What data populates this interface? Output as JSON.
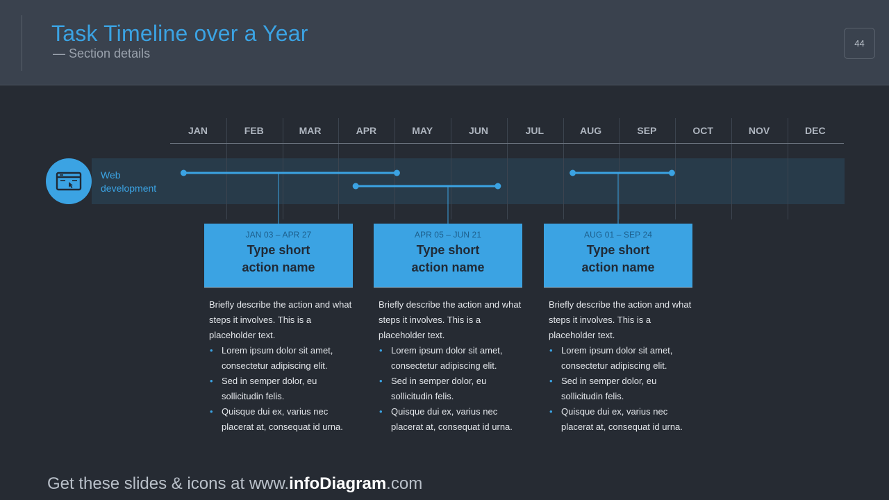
{
  "header": {
    "title": "Task Timeline over a Year",
    "subtitle": "— Section details",
    "page_number": "44"
  },
  "timeline": {
    "months": [
      "JAN",
      "FEB",
      "MAR",
      "APR",
      "MAY",
      "JUN",
      "JUL",
      "AUG",
      "SEP",
      "OCT",
      "NOV",
      "DEC"
    ],
    "row_label": "Web development",
    "row_icon": "browser-window-icon",
    "accent_color": "#3ba3e3",
    "tasks": [
      {
        "dates": "JAN 03 – APR 27",
        "name": "Type short\naction name",
        "description": "Briefly describe the action and what steps it involves. This is a placeholder text.",
        "bullets": [
          "Lorem ipsum dolor sit amet, consectetur adipiscing elit.",
          "Sed in semper dolor, eu sollicitudin felis.",
          "Quisque dui ex, varius nec placerat at, consequat id urna."
        ]
      },
      {
        "dates": "APR 05 – JUN 21",
        "name": "Type short\naction name",
        "description": "Briefly describe the action and what steps it involves. This is a placeholder text.",
        "bullets": [
          "Lorem ipsum dolor sit amet, consectetur adipiscing elit.",
          "Sed in semper dolor, eu sollicitudin felis.",
          "Quisque dui ex, varius nec placerat at, consequat id urna."
        ]
      },
      {
        "dates": "AUG 01 – SEP 24",
        "name": "Type short\naction name",
        "description": "Briefly describe the action and what steps it involves. This is a placeholder text.",
        "bullets": [
          "Lorem ipsum dolor sit amet, consectetur adipiscing elit.",
          "Sed in semper dolor, eu sollicitudin felis.",
          "Quisque dui ex, varius nec placerat at, consequat id urna."
        ]
      }
    ]
  },
  "footer": {
    "prefix": "Get these slides & icons at www.",
    "brand": "infoDiagram",
    "suffix": ".com"
  }
}
